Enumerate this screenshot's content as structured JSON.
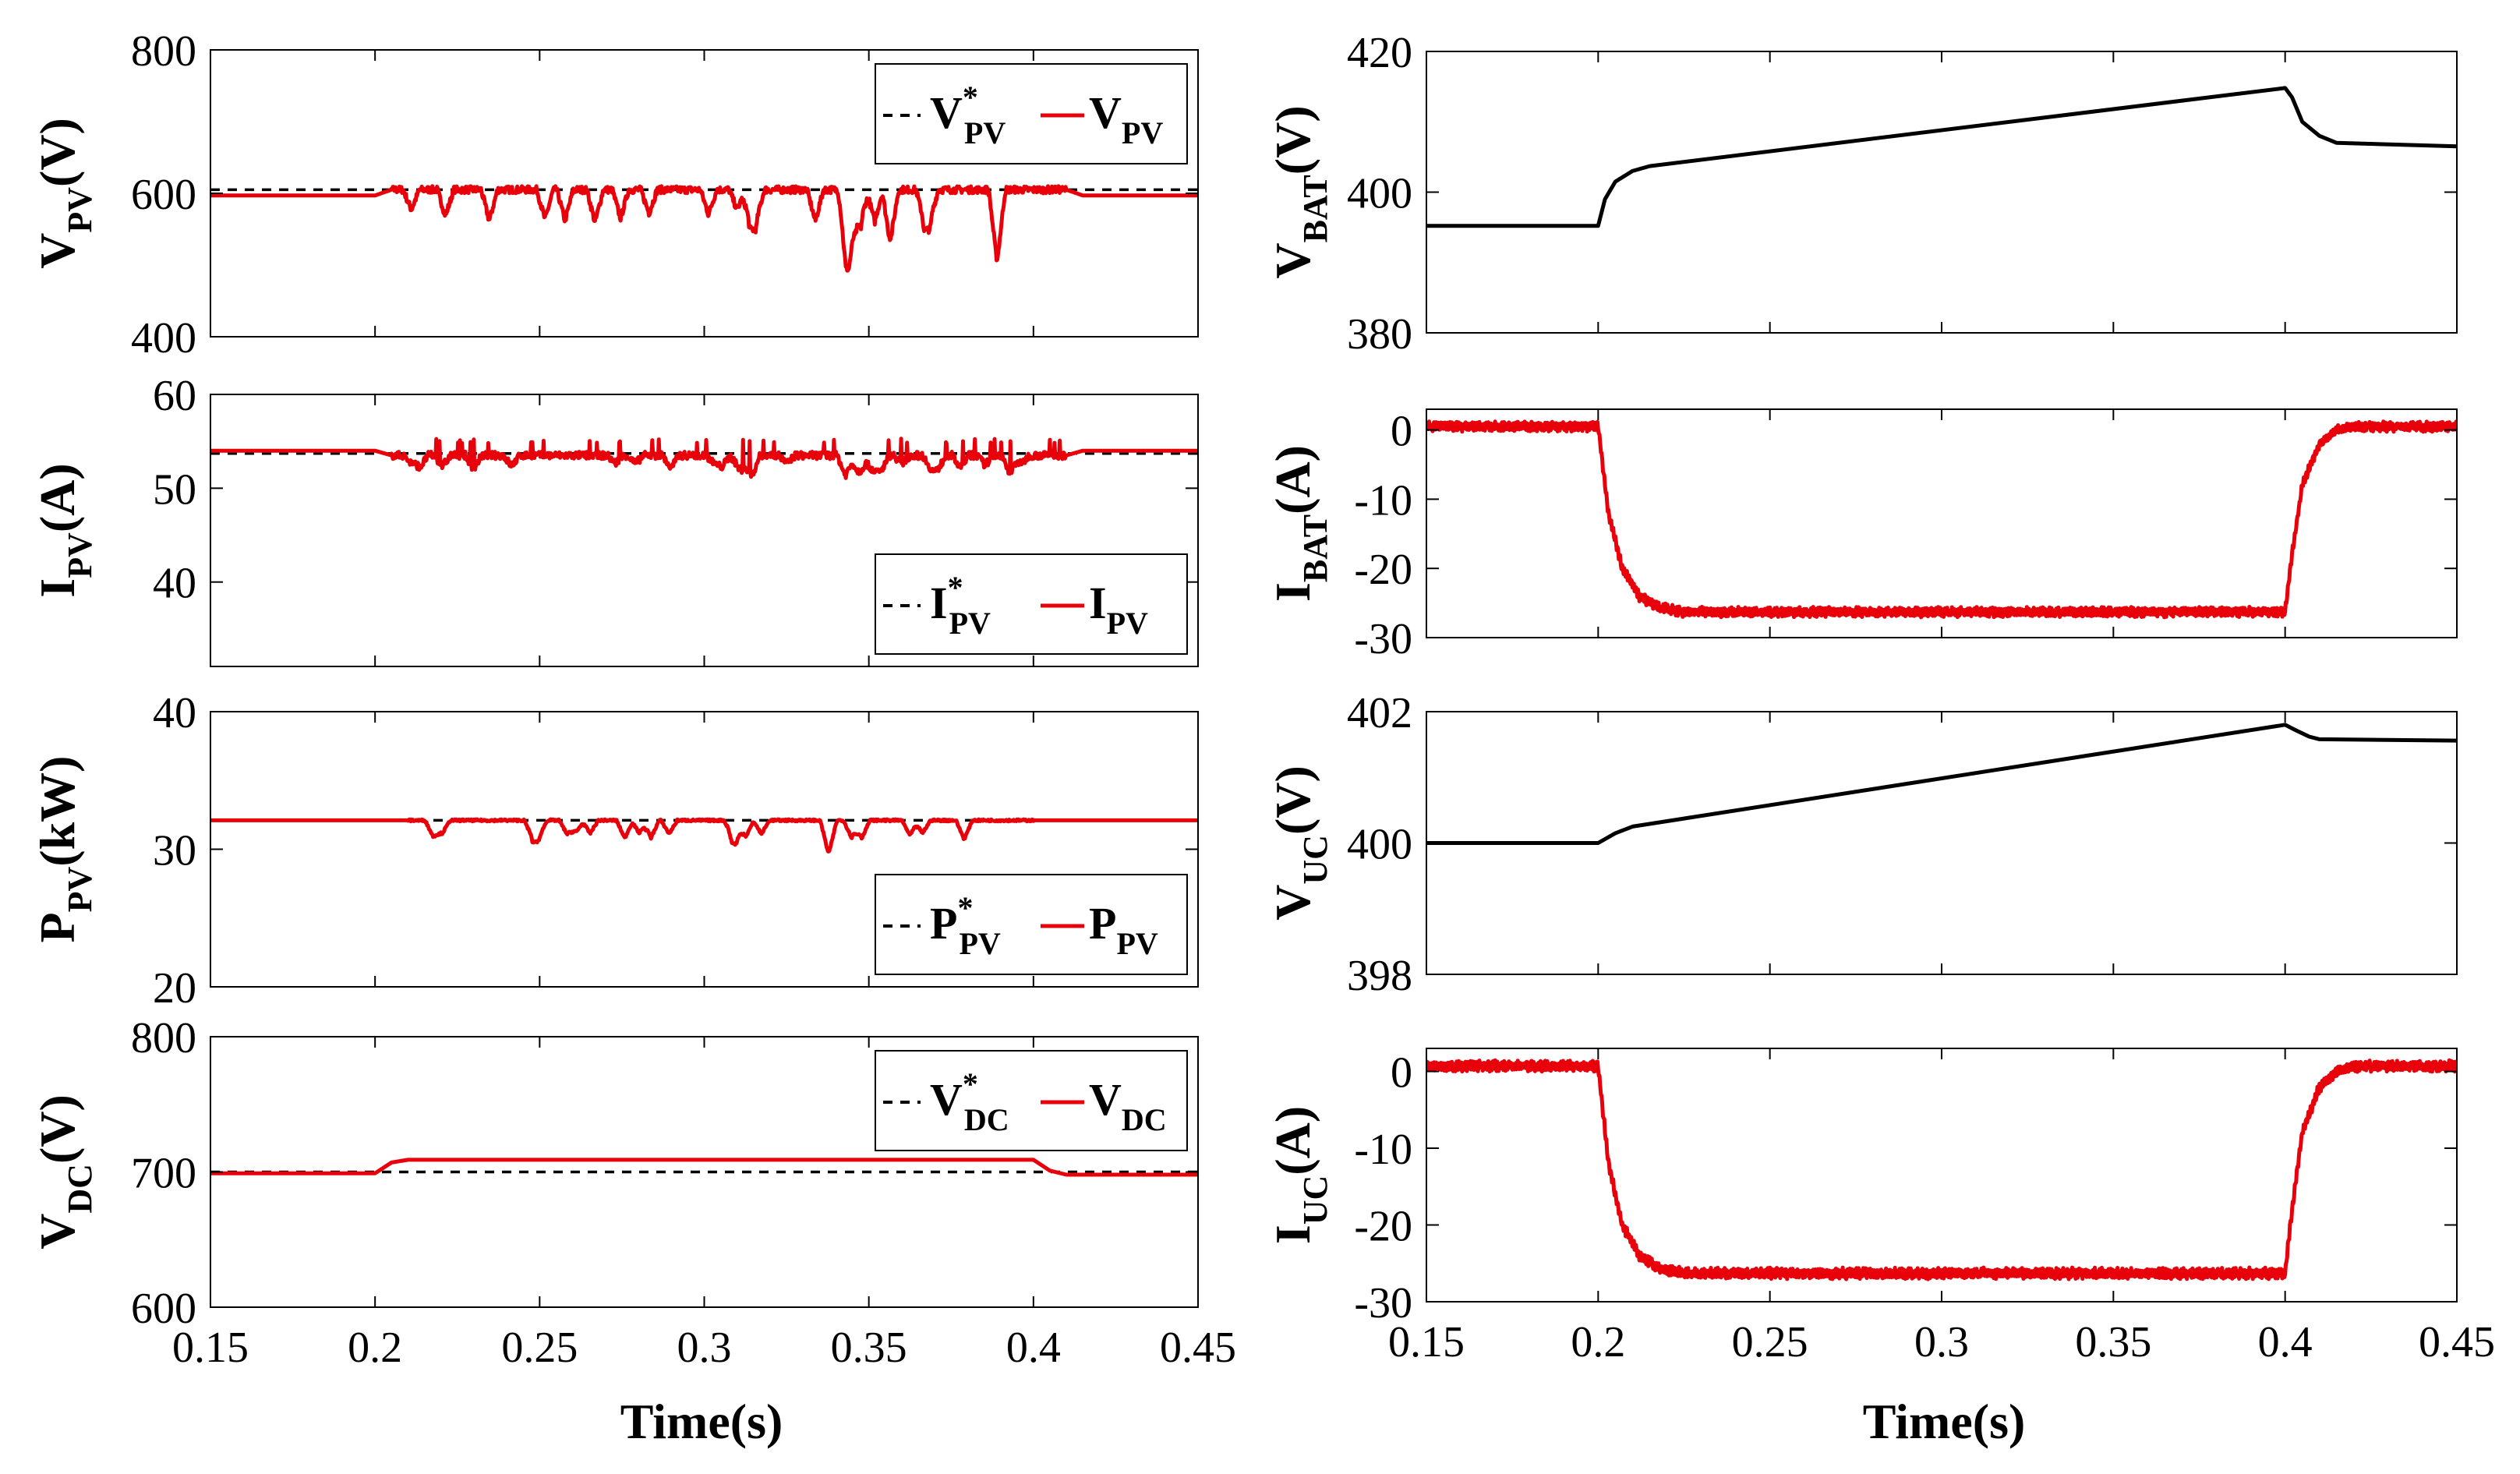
{
  "figure": {
    "colors": {
      "reference": "#000000",
      "measured": "#e8000b",
      "axis": "#000000"
    },
    "xlabel": "Time(s)",
    "xlim": [
      0.15,
      0.45
    ],
    "xticks": [
      "0.15",
      "0.2",
      "0.25",
      "0.3",
      "0.35",
      "0.4",
      "0.45"
    ]
  },
  "chart_data": [
    {
      "id": "vpv",
      "type": "line",
      "column": "left",
      "row": 0,
      "ylabel": {
        "main": "V",
        "sub": "PV",
        "unit": "(V)"
      },
      "ylim": [
        400,
        800
      ],
      "yticks": [
        "400",
        "600",
        "800"
      ],
      "legend": {
        "position": "top-right",
        "ref_main": "V",
        "ref_sup": "*",
        "ref_sub": "PV",
        "meas_main": "V",
        "meas_sub": "PV"
      },
      "series": [
        {
          "name": "V*PV",
          "style": "reference",
          "x": [
            0.15,
            0.45
          ],
          "y": [
            605,
            605
          ]
        },
        {
          "name": "VPV",
          "style": "measured",
          "x": [
            0.15,
            0.2,
            0.205,
            0.41,
            0.415,
            0.45
          ],
          "y": [
            597,
            597,
            605,
            605,
            597,
            597
          ],
          "noise": {
            "from": 0.205,
            "to": 0.41,
            "amp": 10,
            "spike_min": 555,
            "spike_count": 26
          }
        }
      ]
    },
    {
      "id": "ipv",
      "type": "line",
      "column": "left",
      "row": 1,
      "ylabel": {
        "main": "I",
        "sub": "PV",
        "unit": "(A)"
      },
      "ylim": [
        31,
        60
      ],
      "yticks": [
        "40",
        "50",
        "60"
      ],
      "legend": {
        "position": "bottom-right",
        "ref_main": "I",
        "ref_sup": "*",
        "ref_sub": "PV",
        "meas_main": "I",
        "meas_sub": "PV"
      },
      "series": [
        {
          "name": "I*PV",
          "style": "reference",
          "x": [
            0.15,
            0.45
          ],
          "y": [
            53.7,
            53.7
          ]
        },
        {
          "name": "IPV",
          "style": "measured",
          "x": [
            0.15,
            0.2,
            0.205,
            0.41,
            0.415,
            0.45
          ],
          "y": [
            54,
            54,
            53.5,
            53.5,
            54,
            54
          ],
          "noise": {
            "from": 0.205,
            "to": 0.41,
            "amp": 0.8,
            "spike_min": 52,
            "spike_count": 30,
            "spike_max": 55.3
          }
        }
      ]
    },
    {
      "id": "ppv",
      "type": "line",
      "column": "left",
      "row": 2,
      "ylabel": {
        "main": "P",
        "sub": "PV",
        "unit": "(kW)"
      },
      "ylim": [
        20,
        40
      ],
      "yticks": [
        "20",
        "30",
        "40"
      ],
      "legend": {
        "position": "bottom-right",
        "ref_main": "P",
        "ref_sup": "*",
        "ref_sub": "PV",
        "meas_main": "P",
        "meas_sub": "PV"
      },
      "series": [
        {
          "name": "P*PV",
          "style": "reference",
          "x": [
            0.15,
            0.45
          ],
          "y": [
            32.1,
            32.1
          ]
        },
        {
          "name": "PPV",
          "style": "measured",
          "x": [
            0.15,
            0.45
          ],
          "y": [
            32.1,
            32.1
          ],
          "noise": {
            "from": 0.21,
            "to": 0.4,
            "amp": 0.15,
            "spike_min": 30.7,
            "spike_count": 22
          }
        }
      ]
    },
    {
      "id": "vdc",
      "type": "line",
      "column": "left",
      "row": 3,
      "ylabel": {
        "main": "V",
        "sub": "DC",
        "unit": "(V)"
      },
      "ylim": [
        600,
        800
      ],
      "yticks": [
        "600",
        "700",
        "800"
      ],
      "legend": {
        "position": "top-right",
        "ref_main": "V",
        "ref_sup": "*",
        "ref_sub": "DC",
        "meas_main": "V",
        "meas_sub": "DC"
      },
      "series": [
        {
          "name": "V*DC",
          "style": "reference",
          "x": [
            0.15,
            0.45
          ],
          "y": [
            700,
            700
          ]
        },
        {
          "name": "VDC",
          "style": "measured",
          "x": [
            0.15,
            0.2,
            0.205,
            0.21,
            0.4,
            0.405,
            0.41,
            0.45
          ],
          "y": [
            699,
            699,
            707,
            709,
            709,
            701,
            698,
            698
          ]
        }
      ]
    },
    {
      "id": "vbat",
      "type": "line",
      "column": "right",
      "row": 0,
      "ylabel": {
        "main": "V",
        "sub": "BAT",
        "unit": "(V)"
      },
      "ylim": [
        380,
        420
      ],
      "yticks": [
        "380",
        "400",
        "420"
      ],
      "series": [
        {
          "name": "VBAT",
          "style": "reference",
          "x": [
            0.15,
            0.2,
            0.202,
            0.205,
            0.21,
            0.215,
            0.4,
            0.402,
            0.405,
            0.41,
            0.415,
            0.45
          ],
          "y": [
            395.2,
            395.2,
            399,
            401.5,
            403,
            403.7,
            414.8,
            413.5,
            410,
            408,
            407,
            406.5
          ]
        }
      ]
    },
    {
      "id": "ibat",
      "type": "line",
      "column": "right",
      "row": 1,
      "ylabel": {
        "main": "I",
        "sub": "BAT",
        "unit": "(A)"
      },
      "ylim": [
        -30,
        3
      ],
      "yticks": [
        "-30",
        "-20",
        "-10",
        "0"
      ],
      "series": [
        {
          "name": "IBAT",
          "style": "measured",
          "x": [
            0.15,
            0.2,
            0.203,
            0.207,
            0.212,
            0.218,
            0.225,
            0.4,
            0.402,
            0.405,
            0.41,
            0.415,
            0.42,
            0.45
          ],
          "y": [
            0.5,
            0.5,
            -12,
            -20,
            -24,
            -25.7,
            -26.3,
            -26.3,
            -18,
            -8,
            -2,
            0,
            0.5,
            0.5
          ],
          "noise": {
            "from": 0.15,
            "to": 0.45,
            "amp": 0.7,
            "periodic": true
          }
        }
      ]
    },
    {
      "id": "vuc",
      "type": "line",
      "column": "right",
      "row": 2,
      "ylabel": {
        "main": "V",
        "sub": "UC",
        "unit": "(V)"
      },
      "ylim": [
        398,
        402
      ],
      "yticks": [
        "398",
        "400",
        "402"
      ],
      "series": [
        {
          "name": "VUC",
          "style": "reference",
          "x": [
            0.15,
            0.2,
            0.205,
            0.21,
            0.4,
            0.403,
            0.407,
            0.41,
            0.45
          ],
          "y": [
            400,
            400,
            400.15,
            400.25,
            401.8,
            401.72,
            401.62,
            401.58,
            401.56
          ]
        }
      ]
    },
    {
      "id": "iuc",
      "type": "line",
      "column": "right",
      "row": 3,
      "ylabel": {
        "main": "I",
        "sub": "UC",
        "unit": "(A)"
      },
      "ylim": [
        -30,
        3
      ],
      "yticks": [
        "-30",
        "-20",
        "-10",
        "0"
      ],
      "series": [
        {
          "name": "IUC",
          "style": "measured",
          "x": [
            0.15,
            0.2,
            0.203,
            0.207,
            0.212,
            0.218,
            0.225,
            0.4,
            0.402,
            0.405,
            0.41,
            0.415,
            0.42,
            0.45
          ],
          "y": [
            0.7,
            0.7,
            -12,
            -20,
            -24,
            -25.7,
            -26.3,
            -26.3,
            -18,
            -8,
            -2,
            0,
            0.7,
            0.7
          ],
          "noise": {
            "from": 0.15,
            "to": 0.45,
            "amp": 0.7,
            "periodic": true
          }
        }
      ]
    }
  ]
}
